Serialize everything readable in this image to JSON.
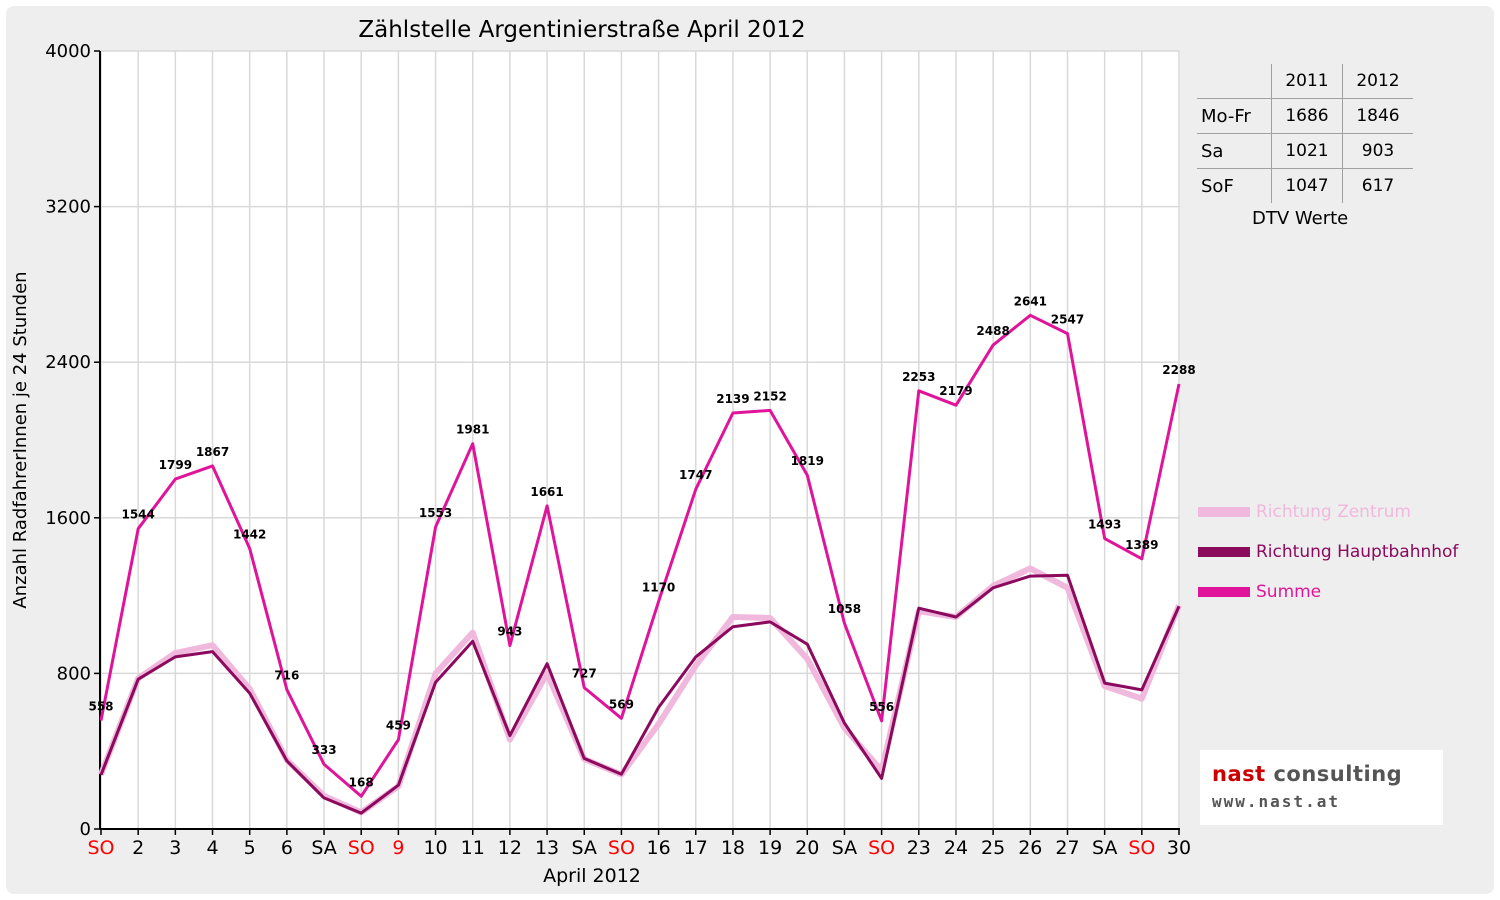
{
  "chart_data": {
    "type": "line",
    "title": "Zählstelle Argentinierstraße April 2012",
    "xlabel": "April 2012",
    "ylabel": "Anzahl RadfahrerInnen je 24 Stunden",
    "ylim": [
      0,
      4000
    ],
    "yticks": [
      0,
      800,
      1600,
      2400,
      3200,
      4000
    ],
    "grid": true,
    "legend_position": "right",
    "categories": [
      "SO",
      "2",
      "3",
      "4",
      "5",
      "6",
      "SA",
      "SO",
      "9",
      "10",
      "11",
      "12",
      "13",
      "SA",
      "SO",
      "16",
      "17",
      "18",
      "19",
      "20",
      "SA",
      "SO",
      "23",
      "24",
      "25",
      "26",
      "27",
      "SA",
      "SO",
      "30"
    ],
    "category_colors": [
      "#ff0000",
      "#000000",
      "#000000",
      "#000000",
      "#000000",
      "#000000",
      "#000000",
      "#ff0000",
      "#ff0000",
      "#000000",
      "#000000",
      "#000000",
      "#000000",
      "#000000",
      "#ff0000",
      "#000000",
      "#000000",
      "#000000",
      "#000000",
      "#000000",
      "#000000",
      "#ff0000",
      "#000000",
      "#000000",
      "#000000",
      "#000000",
      "#000000",
      "#000000",
      "#ff0000",
      "#000000"
    ],
    "series": [
      {
        "name": "Richtung Zentrum",
        "color": "#f0b8dc",
        "values": [
          280,
          775,
          905,
          945,
          720,
          355,
          170,
          85,
          220,
          800,
          1010,
          460,
          800,
          360,
          280,
          540,
          840,
          1090,
          1085,
          875,
          520,
          300,
          1120,
          1090,
          1250,
          1340,
          1240,
          735,
          670,
          1150
        ]
      },
      {
        "name": "Richtung Hauptbahnhof",
        "color": "#8b0a5e",
        "values": [
          278,
          770,
          885,
          912,
          698,
          350,
          160,
          82,
          225,
          755,
          965,
          480,
          850,
          363,
          282,
          625,
          885,
          1040,
          1065,
          950,
          545,
          260,
          1135,
          1090,
          1240,
          1300,
          1305,
          750,
          715,
          1145
        ]
      },
      {
        "name": "Summe",
        "color": "#e0149a",
        "values": [
          558,
          1544,
          1799,
          1867,
          1442,
          716,
          333,
          168,
          459,
          1553,
          1981,
          943,
          1661,
          727,
          569,
          1170,
          1747,
          2139,
          2152,
          1819,
          1058,
          556,
          2253,
          2179,
          2488,
          2641,
          2547,
          1493,
          1389,
          2288
        ],
        "data_labels": [
          "558",
          "1544",
          "1799",
          "1867",
          "1442",
          "716",
          "333",
          "168",
          "459",
          "1553",
          "1981",
          "943",
          "1661",
          "727",
          "569",
          "1170",
          "1747",
          "2139",
          "2152",
          "1819",
          "1058",
          "556",
          "2253",
          "2179",
          "2488",
          "2641",
          "2547",
          "1493",
          "1389",
          "2288"
        ]
      }
    ]
  },
  "dtv_table": {
    "columns": [
      "2011",
      "2012"
    ],
    "rows": [
      {
        "label": "Mo-Fr",
        "v2011": "1686",
        "v2012": "1846"
      },
      {
        "label": "Sa",
        "v2011": "1021",
        "v2012": "903"
      },
      {
        "label": "SoF",
        "v2011": "1047",
        "v2012": "617"
      }
    ],
    "caption": "DTV Werte"
  },
  "logo": {
    "name_part1": "nast",
    "name_part2": " consulting",
    "url": "www.nast.at",
    "color1": "#cc0000",
    "color2": "#555555"
  }
}
